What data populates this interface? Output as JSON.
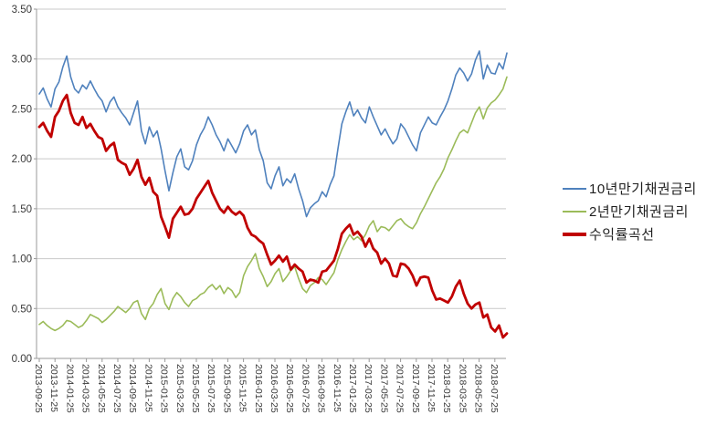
{
  "chart_data": {
    "type": "line",
    "title": "",
    "xlabel": "",
    "ylabel": "",
    "grid": true,
    "legend_position": "right",
    "background": "#ffffff",
    "colors": {
      "gridline": "#c9c9c9",
      "axis": "#999999",
      "tick_text": "#3a3a3a",
      "legend_text": "#1f1f1f"
    },
    "y_axis": {
      "min": 0,
      "max": 3.5,
      "step": 0.5,
      "tick_labels": [
        "0.00",
        "0.50",
        "1.00",
        "1.50",
        "2.00",
        "2.50",
        "3.00",
        "3.50"
      ]
    },
    "x_axis": {
      "tick_labels": [
        "2013-09-25",
        "2013-11-25",
        "2014-01-25",
        "2014-03-25",
        "2014-05-25",
        "2014-07-25",
        "2014-09-25",
        "2014-11-25",
        "2015-01-25",
        "2015-03-25",
        "2015-05-25",
        "2015-07-25",
        "2015-09-25",
        "2015-11-25",
        "2016-01-25",
        "2016-03-25",
        "2016-05-25",
        "2016-07-25",
        "2016-09-25",
        "2016-11-25",
        "2017-01-25",
        "2017-03-25",
        "2017-05-25",
        "2017-07-25",
        "2017-09-25",
        "2017-11-25",
        "2018-01-25",
        "2018-03-25",
        "2018-05-25",
        "2018-07-25"
      ]
    },
    "series": [
      {
        "name": "10년만기채권금리",
        "color": "#4F81BD",
        "stroke_width": 1.6,
        "values": [
          2.65,
          2.71,
          2.6,
          2.52,
          2.7,
          2.77,
          2.92,
          3.03,
          2.82,
          2.7,
          2.66,
          2.74,
          2.7,
          2.78,
          2.7,
          2.63,
          2.58,
          2.47,
          2.57,
          2.62,
          2.52,
          2.46,
          2.41,
          2.34,
          2.46,
          2.58,
          2.28,
          2.15,
          2.32,
          2.22,
          2.28,
          2.1,
          1.88,
          1.68,
          1.86,
          2.02,
          2.1,
          1.92,
          1.89,
          1.98,
          2.14,
          2.24,
          2.31,
          2.42,
          2.34,
          2.24,
          2.17,
          2.08,
          2.2,
          2.13,
          2.06,
          2.15,
          2.28,
          2.34,
          2.24,
          2.29,
          2.09,
          1.98,
          1.76,
          1.7,
          1.83,
          1.92,
          1.73,
          1.8,
          1.76,
          1.85,
          1.7,
          1.58,
          1.42,
          1.51,
          1.55,
          1.58,
          1.67,
          1.62,
          1.74,
          1.83,
          2.1,
          2.35,
          2.47,
          2.57,
          2.43,
          2.49,
          2.41,
          2.36,
          2.52,
          2.42,
          2.33,
          2.24,
          2.3,
          2.22,
          2.15,
          2.2,
          2.35,
          2.3,
          2.22,
          2.14,
          2.08,
          2.26,
          2.34,
          2.42,
          2.36,
          2.34,
          2.42,
          2.49,
          2.58,
          2.7,
          2.84,
          2.91,
          2.86,
          2.78,
          2.85,
          2.99,
          3.08,
          2.8,
          2.94,
          2.86,
          2.85,
          2.96,
          2.9,
          3.06
        ]
      },
      {
        "name": "2년만기채권금리",
        "color": "#9BBB59",
        "stroke_width": 1.6,
        "values": [
          0.34,
          0.37,
          0.33,
          0.3,
          0.28,
          0.3,
          0.33,
          0.38,
          0.37,
          0.34,
          0.31,
          0.33,
          0.38,
          0.44,
          0.42,
          0.4,
          0.36,
          0.39,
          0.43,
          0.47,
          0.52,
          0.49,
          0.46,
          0.5,
          0.56,
          0.58,
          0.45,
          0.39,
          0.5,
          0.55,
          0.64,
          0.7,
          0.55,
          0.49,
          0.6,
          0.66,
          0.62,
          0.56,
          0.52,
          0.58,
          0.6,
          0.64,
          0.66,
          0.71,
          0.74,
          0.69,
          0.73,
          0.65,
          0.71,
          0.68,
          0.61,
          0.66,
          0.83,
          0.92,
          0.98,
          1.05,
          0.9,
          0.82,
          0.72,
          0.77,
          0.85,
          0.9,
          0.77,
          0.82,
          0.88,
          0.92,
          0.8,
          0.7,
          0.66,
          0.73,
          0.76,
          0.81,
          0.79,
          0.74,
          0.8,
          0.86,
          0.99,
          1.09,
          1.17,
          1.24,
          1.19,
          1.22,
          1.18,
          1.24,
          1.33,
          1.38,
          1.27,
          1.32,
          1.31,
          1.28,
          1.33,
          1.38,
          1.4,
          1.35,
          1.32,
          1.3,
          1.36,
          1.45,
          1.52,
          1.6,
          1.68,
          1.76,
          1.82,
          1.9,
          2.01,
          2.09,
          2.18,
          2.26,
          2.29,
          2.26,
          2.36,
          2.46,
          2.52,
          2.4,
          2.51,
          2.56,
          2.59,
          2.64,
          2.7,
          2.82
        ]
      },
      {
        "name": "수익률곡선",
        "color": "#C00000",
        "stroke_width": 2.8,
        "values": [
          2.32,
          2.36,
          2.28,
          2.22,
          2.42,
          2.48,
          2.58,
          2.64,
          2.46,
          2.36,
          2.34,
          2.42,
          2.31,
          2.35,
          2.28,
          2.22,
          2.2,
          2.08,
          2.13,
          2.16,
          1.99,
          1.96,
          1.94,
          1.84,
          1.9,
          1.99,
          1.82,
          1.74,
          1.81,
          1.67,
          1.63,
          1.42,
          1.32,
          1.21,
          1.4,
          1.46,
          1.52,
          1.44,
          1.45,
          1.5,
          1.6,
          1.66,
          1.72,
          1.78,
          1.66,
          1.58,
          1.5,
          1.46,
          1.52,
          1.47,
          1.44,
          1.47,
          1.43,
          1.31,
          1.24,
          1.22,
          1.18,
          1.15,
          1.04,
          0.94,
          0.98,
          1.03,
          0.97,
          1.02,
          0.89,
          0.94,
          0.9,
          0.87,
          0.76,
          0.79,
          0.78,
          0.76,
          0.87,
          0.88,
          0.93,
          0.98,
          1.1,
          1.25,
          1.3,
          1.34,
          1.24,
          1.27,
          1.22,
          1.12,
          1.2,
          1.1,
          1.06,
          0.95,
          1.0,
          0.95,
          0.83,
          0.82,
          0.95,
          0.94,
          0.9,
          0.83,
          0.73,
          0.81,
          0.82,
          0.81,
          0.68,
          0.59,
          0.6,
          0.58,
          0.56,
          0.62,
          0.72,
          0.78,
          0.65,
          0.55,
          0.5,
          0.54,
          0.56,
          0.41,
          0.44,
          0.31,
          0.27,
          0.33,
          0.21,
          0.25
        ]
      }
    ]
  }
}
